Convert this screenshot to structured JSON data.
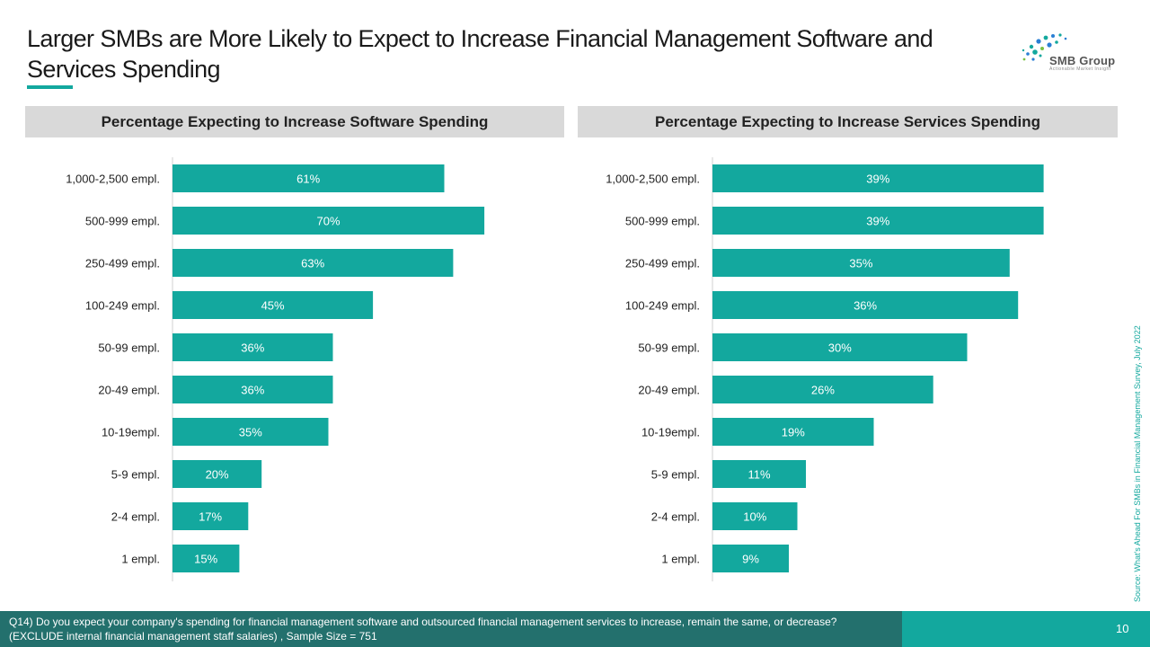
{
  "title": "Larger SMBs are More Likely to Expect to Increase Financial Management Software and Services Spending",
  "logo": {
    "name": "SMB Group",
    "tagline": "Actionable Market Insight"
  },
  "colors": {
    "bar": "#13a89e",
    "header_bg": "#d9d9d9",
    "footer_dark": "#23706d",
    "footer_light": "#13a89e"
  },
  "source": "Source: What's Ahead For SMBs in Financial Management Survey, July 2022",
  "footnote": "Q14) Do you expect your company's spending for financial management software and outsourced financial management services to increase, remain the same, or decrease? (EXCLUDE internal financial management staff salaries) , Sample Size = 751",
  "page_number": "10",
  "chart_data": [
    {
      "type": "bar",
      "orientation": "horizontal",
      "title": "Percentage Expecting to Increase Software Spending",
      "categories": [
        "1,000-2,500 empl.",
        "500-999 empl.",
        "250-499 empl.",
        "100-249 empl.",
        "50-99 empl.",
        "20-49 empl.",
        "10-19empl.",
        "5-9 empl.",
        "2-4 empl.",
        "1 empl."
      ],
      "values": [
        61,
        70,
        63,
        45,
        36,
        36,
        35,
        20,
        17,
        15
      ],
      "labels": [
        "61%",
        "70%",
        "63%",
        "45%",
        "36%",
        "36%",
        "35%",
        "20%",
        "17%",
        "15%"
      ],
      "xlim": [
        0,
        72
      ],
      "grid": false
    },
    {
      "type": "bar",
      "orientation": "horizontal",
      "title": "Percentage Expecting to Increase Services Spending",
      "categories": [
        "1,000-2,500 empl.",
        "500-999 empl.",
        "250-499 empl.",
        "100-249 empl.",
        "50-99 empl.",
        "20-49 empl.",
        "10-19empl.",
        "5-9 empl.",
        "2-4 empl.",
        "1 empl."
      ],
      "values": [
        39,
        39,
        35,
        36,
        30,
        26,
        19,
        11,
        10,
        9
      ],
      "labels": [
        "39%",
        "39%",
        "35%",
        "36%",
        "30%",
        "26%",
        "19%",
        "11%",
        "10%",
        "9%"
      ],
      "xlim": [
        0,
        40
      ],
      "grid": false
    }
  ]
}
